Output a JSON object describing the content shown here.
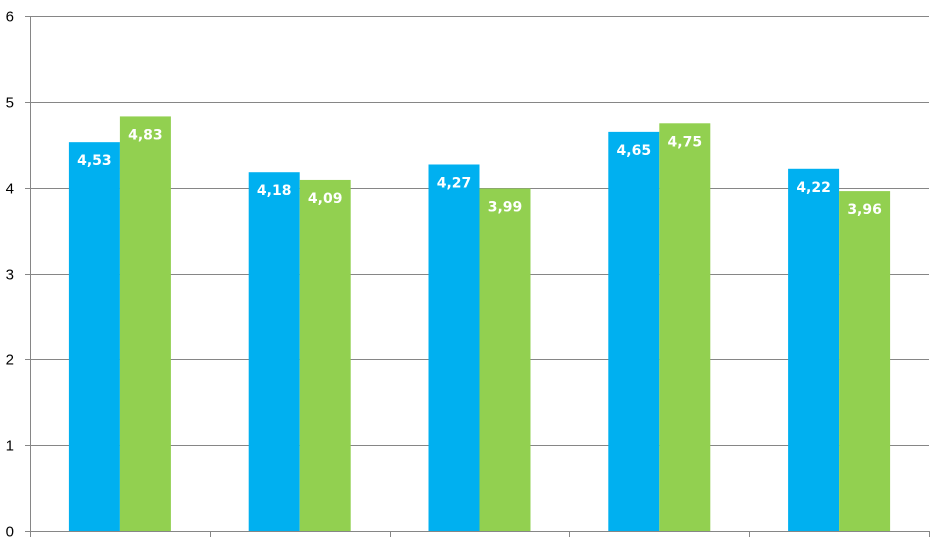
{
  "chart_data": {
    "type": "bar",
    "categories": [
      "",
      "",
      "",
      "",
      ""
    ],
    "series": [
      {
        "color": "#00b0f0",
        "values": [
          4.53,
          4.18,
          4.27,
          4.65,
          4.22
        ],
        "labels": [
          "4,53",
          "4,18",
          "4,27",
          "4,65",
          "4,22"
        ]
      },
      {
        "color": "#92d050",
        "values": [
          4.83,
          4.09,
          3.99,
          4.75,
          3.96
        ],
        "labels": [
          "4,83",
          "4,09",
          "3,99",
          "4,75",
          "3,96"
        ]
      }
    ],
    "title": "",
    "xlabel": "",
    "ylabel": "",
    "ylim": [
      0,
      6
    ],
    "yticks": [
      0,
      1,
      2,
      3,
      4,
      5,
      6
    ],
    "ytick_labels": [
      "0",
      "1",
      "2",
      "3",
      "4",
      "5",
      "6"
    ],
    "grid": true,
    "legend": "none",
    "gridline_color": "#868686",
    "axis_color": "#868686"
  }
}
